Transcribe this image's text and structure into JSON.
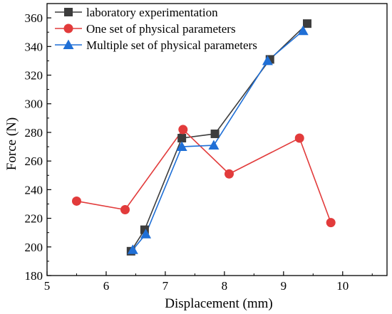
{
  "chart_data": {
    "type": "line",
    "xlabel": "Displacement (mm)",
    "ylabel": "Force (N)",
    "xlim": [
      5,
      10.75
    ],
    "ylim": [
      180,
      370
    ],
    "xticks": [
      5,
      6,
      7,
      8,
      9,
      10
    ],
    "yticks": [
      180,
      200,
      220,
      240,
      260,
      280,
      300,
      320,
      340,
      360
    ],
    "grid": false,
    "legend_position": "top-left",
    "series": [
      {
        "name": "laboratory experimentation",
        "color": "#3d3d3d",
        "marker": "square",
        "x": [
          6.42,
          6.65,
          7.28,
          7.84,
          8.77,
          9.4
        ],
        "y": [
          197,
          212,
          276,
          279,
          331,
          356
        ]
      },
      {
        "name": "One set of physical parameters",
        "color": "#e23b3b",
        "marker": "circle",
        "x": [
          5.5,
          6.32,
          7.3,
          8.08,
          9.27,
          9.8
        ],
        "y": [
          232,
          226,
          282,
          251,
          276,
          217
        ]
      },
      {
        "name": "Multiple set of physical parameters",
        "color": "#1f6fd6",
        "marker": "triangle",
        "x": [
          6.45,
          6.67,
          7.28,
          7.82,
          8.73,
          9.33
        ],
        "y": [
          198,
          209,
          270,
          271,
          330,
          351
        ]
      }
    ]
  }
}
